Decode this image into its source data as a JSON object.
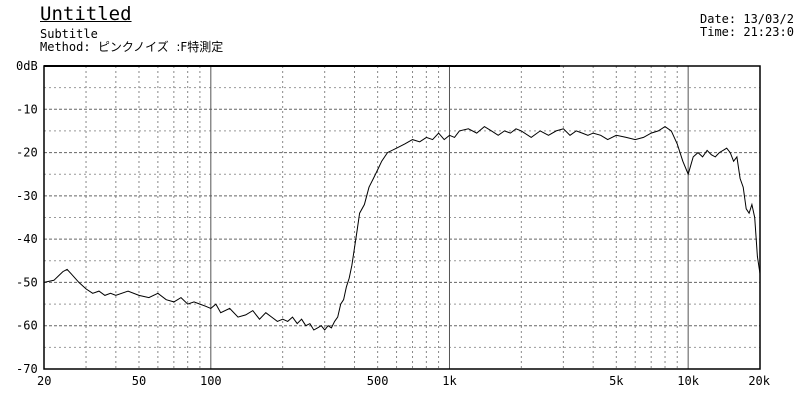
{
  "header": {
    "title": "Untitled",
    "subtitle": "Subtitle",
    "method_label": "Method:",
    "method_value": "ピンクノイズ  :F特測定",
    "date": "Date: 13/03/2",
    "time": "Time: 21:23:0"
  },
  "chart_data": {
    "type": "line",
    "title": "Untitled",
    "subtitle": "Subtitle",
    "xscale": "log",
    "xlim": [
      20,
      20000
    ],
    "ylim": [
      -70,
      0
    ],
    "grid": true,
    "xtick_labels": [
      "20",
      "50",
      "100",
      "500",
      "1k",
      "5k",
      "10k",
      "20k"
    ],
    "xtick_values": [
      20,
      50,
      100,
      500,
      1000,
      5000,
      10000,
      20000
    ],
    "ytick_labels": [
      "0dB",
      "-10",
      "-20",
      "-30",
      "-40",
      "-50",
      "-60",
      "-70"
    ],
    "ytick_values": [
      0,
      -10,
      -20,
      -30,
      -40,
      -50,
      -60,
      -70
    ],
    "series": [
      {
        "x": [
          20,
          22,
          23,
          24,
          25,
          26,
          28,
          30,
          32,
          34,
          36,
          38,
          40,
          45,
          50,
          55,
          60,
          65,
          70,
          75,
          80,
          85,
          90,
          95,
          100,
          105,
          110,
          120,
          130,
          140,
          150,
          160,
          170,
          180,
          190,
          200,
          210,
          220,
          230,
          240,
          250,
          260,
          270,
          280,
          290,
          300,
          310,
          320,
          330,
          340,
          350,
          360,
          370,
          380,
          390,
          400,
          410,
          420,
          440,
          460,
          480,
          500,
          520,
          550,
          600,
          650,
          700,
          750,
          800,
          850,
          900,
          950,
          1000,
          1050,
          1100,
          1200,
          1300,
          1400,
          1500,
          1600,
          1700,
          1800,
          1900,
          2000,
          2200,
          2400,
          2600,
          2800,
          3000,
          3200,
          3400,
          3600,
          3800,
          4000,
          4300,
          4600,
          5000,
          5500,
          6000,
          6500,
          7000,
          7500,
          8000,
          8500,
          9000,
          9500,
          10000,
          10500,
          11000,
          11500,
          12000,
          12500,
          13000,
          13500,
          14000,
          14500,
          15000,
          15500,
          16000,
          16500,
          17000,
          17500,
          18000,
          18500,
          19000,
          19500,
          20000
        ],
        "y": [
          -50,
          -49.5,
          -48.5,
          -47.5,
          -47,
          -48,
          -50,
          -51.5,
          -52.5,
          -52,
          -53,
          -52.5,
          -53,
          -52,
          -53,
          -53.5,
          -52.5,
          -54,
          -54.5,
          -53.5,
          -55,
          -54.5,
          -55,
          -55.5,
          -56,
          -55,
          -57,
          -56,
          -58,
          -57.5,
          -56.5,
          -58.5,
          -57,
          -58,
          -59,
          -58.5,
          -59,
          -58,
          -59.5,
          -58.5,
          -60,
          -59.5,
          -61,
          -60.5,
          -60,
          -61,
          -60,
          -60.5,
          -59,
          -58,
          -55,
          -54,
          -51,
          -49,
          -46,
          -42,
          -38,
          -34,
          -32,
          -28,
          -26,
          -24,
          -22,
          -20,
          -19,
          -18,
          -17,
          -17.5,
          -16.5,
          -17,
          -15.5,
          -17,
          -16,
          -16.5,
          -15,
          -14.5,
          -15.5,
          -14,
          -15,
          -16,
          -15,
          -15.5,
          -14.5,
          -15,
          -16.5,
          -15,
          -16,
          -15,
          -14.5,
          -16,
          -15,
          -15.5,
          -16,
          -15.5,
          -16,
          -17,
          -16,
          -16.5,
          -17,
          -16.5,
          -15.5,
          -15,
          -14,
          -15,
          -18,
          -22,
          -25,
          -21,
          -20,
          -21,
          -19.5,
          -20.5,
          -21,
          -20,
          -19.5,
          -19,
          -20,
          -22,
          -21,
          -26,
          -28,
          -33,
          -34,
          -32,
          -35,
          -44,
          -48
        ]
      }
    ]
  }
}
